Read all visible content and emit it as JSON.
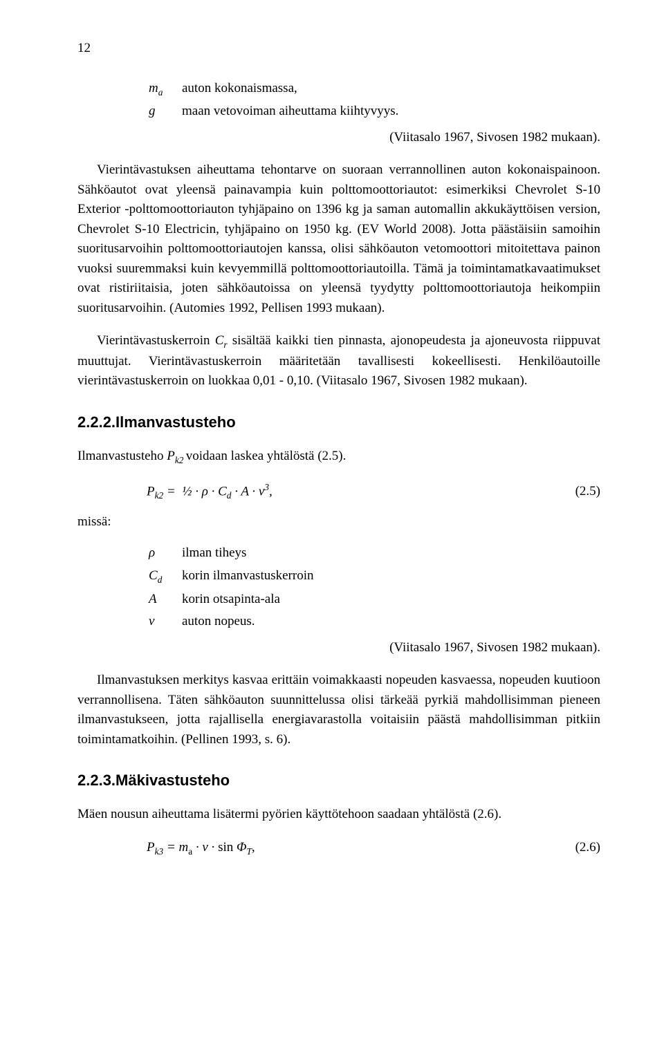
{
  "pageNumber": "12",
  "defs1": {
    "row1sym": "m",
    "row1sub": "a",
    "row1desc": "auton kokonaismassa,",
    "row2sym": "g",
    "row2desc": "maan vetovoiman aiheuttama kiihtyvyys."
  },
  "para1_right": "(Viitasalo 1967, Sivosen 1982 mukaan).",
  "para1_indent": "Vierintävastuksen aiheuttama tehontarve on suoraan verrannollinen auton kokonaispainoon. Sähköautot ovat yleensä painavampia kuin polttomoottoriautot: esimerkiksi Chevrolet S-10 Exterior -polttomoottoriauton tyhjäpaino on 1396 kg ja saman automallin akkukäyttöisen version, Chevrolet S-10 Electricin, tyhjäpaino on 1950 kg. (EV World 2008).  Jotta päästäisiin samoihin suoritusarvoihin polttomoottoriautojen kanssa, olisi sähköauton vetomoottori mitoitettava painon vuoksi suuremmaksi kuin kevyemmillä polttomoottoriautoilla. Tämä ja toimintamatkavaatimukset ovat ristiriitaisia, joten sähköautoissa on yleensä tyydytty polttomoottoriautoja heikompiin suoritusarvoihin. (Automies 1992, Pellisen 1993 mukaan).",
  "para2_a": "Vierintävastuskerroin ",
  "para2_sym": "C",
  "para2_sub": "r",
  "para2_b": " sisältää kaikki tien pinnasta, ajonopeudesta ja ajoneuvosta riippuvat muuttujat. Vierintävastuskerroin määritetään tavallisesti kokeellisesti. Henkilöautoille vierintävastuskerroin on luokkaa 0,01 - 0,10. (Viitasalo 1967, Sivosen 1982 mukaan).",
  "h2_222": "2.2.2.Ilmanvastusteho",
  "para3_a": "Ilmanvastusteho ",
  "para3_sym": "P",
  "para3_sub": "k2 ",
  "para3_b": "voidaan laskea yhtälöstä (2.5).",
  "eq25": "P_{k2} =  ½ · ρ · C_d · A · v^3,",
  "eq25_num": "(2.5)",
  "missa": "missä:",
  "defs2": {
    "r1s": "ρ",
    "r1d": "ilman tiheys",
    "r2s": "C",
    "r2sub": "d",
    "r2d": "korin ilmanvastuskerroin",
    "r3s": "A",
    "r3d": "korin otsapinta-ala",
    "r4s": "v",
    "r4d": "auton nopeus."
  },
  "para4_right": "(Viitasalo 1967, Sivosen 1982 mukaan).",
  "para4": "Ilmanvastuksen merkitys kasvaa erittäin voimakkaasti nopeuden kasvaessa, nopeuden kuutioon verrannollisena. Täten sähköauton suunnittelussa olisi tärkeää pyrkiä mahdollisimman pieneen ilmanvastukseen, jotta rajallisella energiavarastolla voitaisiin päästä mahdollisimman pitkiin toimintamatkoihin. (Pellinen 1993, s. 6).",
  "h2_223": "2.2.3.Mäkivastusteho",
  "para5": "Mäen nousun aiheuttama lisätermi pyörien käyttötehoon saadaan yhtälöstä (2.6).",
  "eq26": "P_{k3} = m_a · v · sin Φ_T,",
  "eq26_num": "(2.6)"
}
